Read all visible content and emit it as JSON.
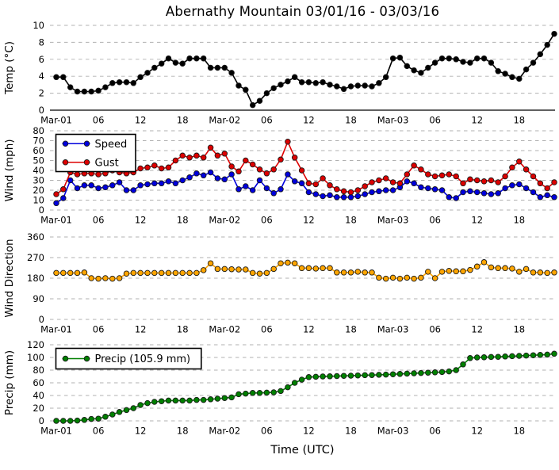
{
  "title": "Abernathy Mountain 03/01/16 - 03/03/16",
  "xlabel": "Time (UTC)",
  "colors": {
    "temp": "#000000",
    "speed": "#0000dd",
    "gust": "#dd0000",
    "direction": "#ffa500",
    "precip": "#008000",
    "grid": "#b0b0b0",
    "marker_edge": "#1a1a1a",
    "spine": "#000000"
  },
  "x_ticks": [
    {
      "hour": 0,
      "label": "Mar-01"
    },
    {
      "hour": 6,
      "label": "06"
    },
    {
      "hour": 12,
      "label": "12"
    },
    {
      "hour": 18,
      "label": "18"
    },
    {
      "hour": 24,
      "label": "Mar-02"
    },
    {
      "hour": 30,
      "label": "06"
    },
    {
      "hour": 36,
      "label": "12"
    },
    {
      "hour": 42,
      "label": "18"
    },
    {
      "hour": 48,
      "label": "Mar-03"
    },
    {
      "hour": 54,
      "label": "06"
    },
    {
      "hour": 60,
      "label": "12"
    },
    {
      "hour": 66,
      "label": "18"
    }
  ],
  "chart_data": [
    {
      "type": "line",
      "ylabel": "Temp (°C)",
      "ylim": [
        0,
        10
      ],
      "yticks": [
        0,
        2,
        4,
        6,
        8,
        10
      ],
      "xlim_hours": [
        0,
        71
      ],
      "grid": "dashed-horizontal",
      "legend": null,
      "series": [
        {
          "name": "Temp",
          "color_key": "temp",
          "values": [
            3.9,
            3.9,
            2.7,
            2.2,
            2.2,
            2.2,
            2.3,
            2.7,
            3.2,
            3.3,
            3.3,
            3.2,
            3.9,
            4.4,
            5.0,
            5.5,
            6.1,
            5.6,
            5.5,
            6.1,
            6.1,
            6.1,
            5.0,
            5.0,
            5.0,
            4.4,
            2.9,
            2.4,
            0.6,
            1.1,
            2.0,
            2.6,
            3.0,
            3.4,
            3.9,
            3.3,
            3.3,
            3.2,
            3.3,
            3.0,
            2.8,
            2.5,
            2.8,
            2.9,
            2.9,
            2.8,
            3.2,
            3.9,
            6.1,
            6.2,
            5.2,
            4.7,
            4.4,
            5.0,
            5.6,
            6.1,
            6.1,
            6.0,
            5.7,
            5.6,
            6.1,
            6.1,
            5.6,
            4.6,
            4.3,
            3.9,
            3.7,
            4.8,
            5.6,
            6.6,
            7.7,
            9.0
          ]
        }
      ]
    },
    {
      "type": "line",
      "ylabel": "Wind (mph)",
      "ylim": [
        0,
        80
      ],
      "yticks": [
        0,
        10,
        20,
        30,
        40,
        50,
        60,
        70,
        80
      ],
      "xlim_hours": [
        0,
        71
      ],
      "grid": "dashed-horizontal",
      "legend": {
        "position": "upper-left",
        "labels": [
          "Speed",
          "Gust"
        ]
      },
      "series": [
        {
          "name": "Speed",
          "color_key": "speed",
          "values": [
            7,
            12,
            30,
            22,
            25,
            25,
            22,
            23,
            25,
            28,
            20,
            20,
            25,
            26,
            27,
            27,
            29,
            27,
            30,
            33,
            37,
            35,
            38,
            32,
            31,
            36,
            21,
            24,
            20,
            30,
            22,
            17,
            21,
            36,
            29,
            27,
            18,
            16,
            14,
            15,
            13,
            13,
            13,
            14,
            16,
            18,
            19,
            20,
            20,
            23,
            29,
            27,
            23,
            22,
            21,
            20,
            13,
            12,
            18,
            19,
            18,
            17,
            16,
            17,
            22,
            25,
            26,
            22,
            18,
            13,
            15,
            13
          ]
        },
        {
          "name": "Gust",
          "color_key": "gust",
          "values": [
            16,
            21,
            38,
            36,
            37,
            37,
            36,
            37,
            40,
            38,
            37,
            38,
            42,
            43,
            45,
            42,
            43,
            50,
            55,
            53,
            55,
            53,
            63,
            55,
            57,
            44,
            39,
            50,
            46,
            41,
            37,
            41,
            51,
            69,
            53,
            40,
            27,
            26,
            32,
            25,
            21,
            19,
            18,
            20,
            24,
            28,
            30,
            32,
            28,
            27,
            36,
            45,
            41,
            36,
            34,
            35,
            36,
            34,
            27,
            31,
            30,
            29,
            30,
            28,
            34,
            43,
            49,
            41,
            34,
            27,
            22,
            28
          ]
        }
      ]
    },
    {
      "type": "line",
      "ylabel": "Wind Direction",
      "ylim": [
        0,
        360
      ],
      "yticks": [
        0,
        90,
        180,
        270,
        360
      ],
      "xlim_hours": [
        0,
        71
      ],
      "grid": "dashed-horizontal",
      "legend": null,
      "series": [
        {
          "name": "Direction",
          "color_key": "direction",
          "values": [
            203,
            203,
            203,
            203,
            205,
            180,
            178,
            180,
            178,
            180,
            200,
            203,
            203,
            203,
            203,
            203,
            203,
            203,
            203,
            203,
            203,
            215,
            245,
            220,
            220,
            219,
            218,
            218,
            203,
            200,
            203,
            220,
            245,
            248,
            245,
            224,
            224,
            222,
            224,
            224,
            205,
            205,
            205,
            208,
            205,
            205,
            182,
            178,
            182,
            178,
            182,
            178,
            182,
            208,
            180,
            208,
            212,
            210,
            210,
            216,
            231,
            250,
            227,
            224,
            224,
            222,
            208,
            220,
            205,
            205,
            203,
            205
          ]
        }
      ]
    },
    {
      "type": "line",
      "ylabel": "Precip (mm)",
      "ylim": [
        0,
        120
      ],
      "yticks": [
        0,
        20,
        40,
        60,
        80,
        100,
        120
      ],
      "xlim_hours": [
        0,
        71
      ],
      "grid": "dashed-horizontal",
      "legend": {
        "position": "upper-left",
        "labels": [
          "Precip (105.9 mm)"
        ]
      },
      "total_mm": "105.9",
      "series": [
        {
          "name": "Precip (105.9 mm)",
          "color_key": "precip",
          "values": [
            0,
            0,
            0,
            0.5,
            1.5,
            3,
            3.5,
            6.5,
            10,
            14,
            17,
            20,
            25,
            28,
            30,
            31,
            32,
            32,
            32,
            32,
            33,
            33,
            34,
            35,
            36,
            37,
            42,
            43,
            44,
            44,
            44.5,
            45,
            47,
            53,
            60,
            65,
            69,
            69.5,
            70,
            70.3,
            70.6,
            71,
            71.3,
            71.6,
            72,
            72.3,
            72.6,
            73,
            73.5,
            74,
            74.5,
            75,
            75.5,
            76,
            76.5,
            77,
            78,
            80,
            89,
            99,
            100,
            100.3,
            100.7,
            101,
            101.5,
            102,
            102.5,
            103,
            103.5,
            104,
            104.5,
            105.9
          ]
        }
      ]
    }
  ]
}
